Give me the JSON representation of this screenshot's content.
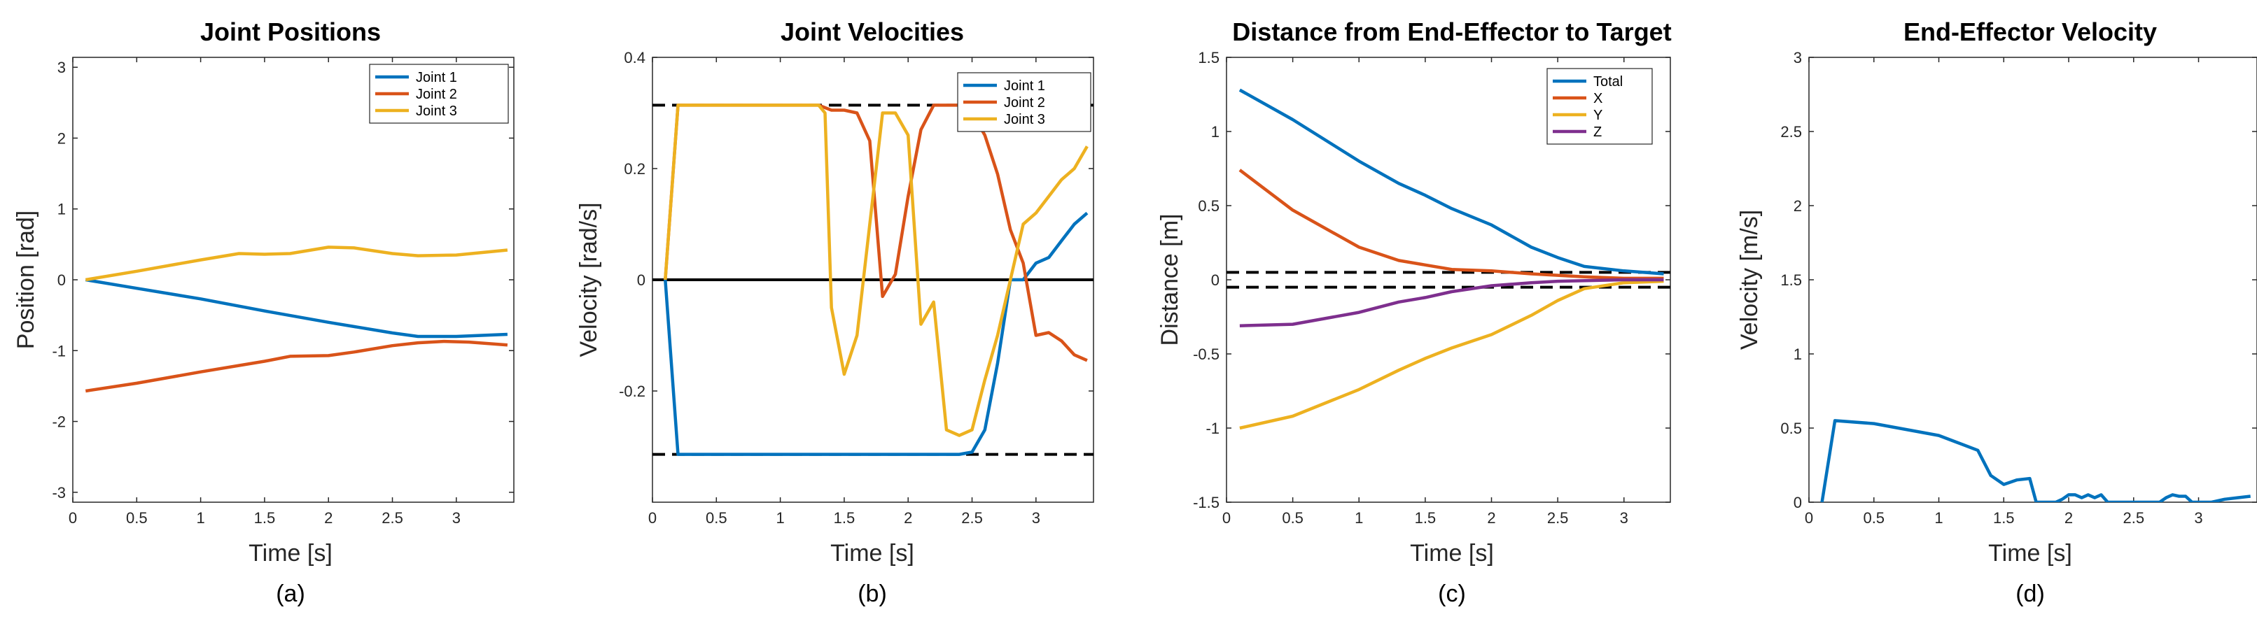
{
  "chart_data": [
    {
      "type": "line",
      "title": "Joint Positions",
      "xlabel": "Time [s]",
      "ylabel": "Position [rad]",
      "caption": "(a)",
      "xlim": [
        0,
        3.45
      ],
      "ylim": [
        -3.14,
        3.14
      ],
      "xticks": [
        0,
        0.5,
        1,
        1.5,
        2,
        2.5,
        3
      ],
      "xtick_labels": [
        "0",
        "0.5",
        "1",
        "1.5",
        "2",
        "2.5",
        "3"
      ],
      "yticks": [
        -3,
        -2,
        -1,
        0,
        1,
        2,
        3
      ],
      "ytick_labels": [
        "-3",
        "-2",
        "-1",
        "0",
        "1",
        "2",
        "3"
      ],
      "legend": "top-right",
      "grid": false,
      "series": [
        {
          "name": "Joint 1",
          "color": "#0072BD",
          "x": [
            0.1,
            0.5,
            1.0,
            1.5,
            2.0,
            2.5,
            2.7,
            3.0,
            3.4
          ],
          "y": [
            0,
            -0.12,
            -0.27,
            -0.44,
            -0.6,
            -0.75,
            -0.8,
            -0.8,
            -0.77
          ]
        },
        {
          "name": "Joint 2",
          "color": "#D95319",
          "x": [
            0.1,
            0.5,
            1.0,
            1.5,
            1.7,
            2.0,
            2.2,
            2.5,
            2.7,
            2.9,
            3.1,
            3.4
          ],
          "y": [
            -1.57,
            -1.46,
            -1.3,
            -1.15,
            -1.08,
            -1.07,
            -1.02,
            -0.93,
            -0.89,
            -0.87,
            -0.88,
            -0.92
          ]
        },
        {
          "name": "Joint 3",
          "color": "#EDB120",
          "x": [
            0.1,
            0.5,
            1.0,
            1.3,
            1.5,
            1.7,
            2.0,
            2.2,
            2.5,
            2.7,
            3.0,
            3.4
          ],
          "y": [
            0,
            0.12,
            0.28,
            0.37,
            0.36,
            0.37,
            0.46,
            0.45,
            0.37,
            0.34,
            0.35,
            0.42
          ]
        }
      ]
    },
    {
      "type": "line",
      "title": "Joint Velocities",
      "xlabel": "Time [s]",
      "ylabel": "Velocity [rad/s]",
      "caption": "(b)",
      "xlim": [
        0,
        3.45
      ],
      "ylim": [
        -0.4,
        0.4
      ],
      "xticks": [
        0,
        0.5,
        1,
        1.5,
        2,
        2.5,
        3
      ],
      "xtick_labels": [
        "0",
        "0.5",
        "1",
        "1.5",
        "2",
        "2.5",
        "3"
      ],
      "yticks": [
        -0.2,
        0,
        0.2,
        0.4
      ],
      "ytick_labels": [
        "-0.2",
        "0",
        "0.2",
        "0.4"
      ],
      "legend": "top-right",
      "grid": false,
      "reference_lines": [
        {
          "y": 0.314,
          "style": "dashed",
          "color": "#000000"
        },
        {
          "y": -0.314,
          "style": "dashed",
          "color": "#000000"
        },
        {
          "y": 0,
          "style": "solid",
          "color": "#000000"
        }
      ],
      "series": [
        {
          "name": "Joint 1",
          "color": "#0072BD",
          "x": [
            0.1,
            0.2,
            0.5,
            1.0,
            1.5,
            2.0,
            2.4,
            2.5,
            2.6,
            2.7,
            2.8,
            2.9,
            3.0,
            3.1,
            3.2,
            3.3,
            3.4
          ],
          "y": [
            0,
            -0.314,
            -0.314,
            -0.314,
            -0.314,
            -0.314,
            -0.314,
            -0.31,
            -0.27,
            -0.15,
            0.0,
            0.0,
            0.03,
            0.04,
            0.07,
            0.1,
            0.12
          ]
        },
        {
          "name": "Joint 2",
          "color": "#D95319",
          "x": [
            0.1,
            0.2,
            0.5,
            1.0,
            1.3,
            1.4,
            1.5,
            1.6,
            1.7,
            1.8,
            1.9,
            2.0,
            2.1,
            2.2,
            2.3,
            2.4,
            2.5,
            2.6,
            2.7,
            2.8,
            2.9,
            3.0,
            3.1,
            3.2,
            3.3,
            3.4
          ],
          "y": [
            0,
            0.314,
            0.314,
            0.314,
            0.314,
            0.305,
            0.305,
            0.3,
            0.25,
            -0.03,
            0.01,
            0.15,
            0.27,
            0.314,
            0.314,
            0.314,
            0.3,
            0.26,
            0.19,
            0.09,
            0.03,
            -0.1,
            -0.095,
            -0.11,
            -0.135,
            -0.145
          ]
        },
        {
          "name": "Joint 3",
          "color": "#EDB120",
          "x": [
            0.1,
            0.2,
            0.5,
            1.0,
            1.3,
            1.35,
            1.4,
            1.5,
            1.6,
            1.65,
            1.8,
            1.9,
            2.0,
            2.1,
            2.2,
            2.3,
            2.4,
            2.5,
            2.6,
            2.7,
            2.8,
            2.9,
            3.0,
            3.1,
            3.2,
            3.3,
            3.4
          ],
          "y": [
            0,
            0.314,
            0.314,
            0.314,
            0.314,
            0.3,
            -0.05,
            -0.17,
            -0.1,
            0.0,
            0.3,
            0.3,
            0.26,
            -0.08,
            -0.04,
            -0.27,
            -0.28,
            -0.27,
            -0.18,
            -0.1,
            0.0,
            0.1,
            0.12,
            0.15,
            0.18,
            0.2,
            0.24
          ]
        }
      ]
    },
    {
      "type": "line",
      "title": "Distance from End-Effector to Target",
      "xlabel": "Time [s]",
      "ylabel": "Distance [m]",
      "caption": "(c)",
      "xlim": [
        0,
        3.35
      ],
      "ylim": [
        -1.5,
        1.5
      ],
      "xticks": [
        0,
        0.5,
        1,
        1.5,
        2,
        2.5,
        3
      ],
      "xtick_labels": [
        "0",
        "0.5",
        "1",
        "1.5",
        "2",
        "2.5",
        "3"
      ],
      "yticks": [
        -1.5,
        -1,
        -0.5,
        0,
        0.5,
        1,
        1.5
      ],
      "ytick_labels": [
        "-1.5",
        "-1",
        "-0.5",
        "0",
        "0.5",
        "1",
        "1.5"
      ],
      "legend": "top-right",
      "grid": false,
      "reference_lines": [
        {
          "y": 0.05,
          "style": "dashed",
          "color": "#000000"
        },
        {
          "y": -0.05,
          "style": "dashed",
          "color": "#000000"
        }
      ],
      "series": [
        {
          "name": "Total",
          "color": "#0072BD",
          "x": [
            0.1,
            0.5,
            1.0,
            1.3,
            1.5,
            1.7,
            2.0,
            2.3,
            2.5,
            2.7,
            3.0,
            3.3
          ],
          "y": [
            1.28,
            1.08,
            0.8,
            0.65,
            0.57,
            0.48,
            0.37,
            0.22,
            0.15,
            0.09,
            0.06,
            0.04
          ]
        },
        {
          "name": "X",
          "color": "#D95319",
          "x": [
            0.1,
            0.5,
            1.0,
            1.3,
            1.5,
            1.7,
            2.0,
            2.3,
            2.7,
            3.0,
            3.3
          ],
          "y": [
            0.74,
            0.47,
            0.22,
            0.13,
            0.1,
            0.07,
            0.06,
            0.04,
            0.02,
            0.01,
            0.01
          ]
        },
        {
          "name": "Y",
          "color": "#EDB120",
          "x": [
            0.1,
            0.5,
            1.0,
            1.3,
            1.5,
            1.7,
            2.0,
            2.3,
            2.5,
            2.7,
            3.0,
            3.3
          ],
          "y": [
            -1.0,
            -0.92,
            -0.74,
            -0.61,
            -0.53,
            -0.46,
            -0.37,
            -0.24,
            -0.14,
            -0.06,
            -0.02,
            -0.01
          ]
        },
        {
          "name": "Z",
          "color": "#7E2F8E",
          "x": [
            0.1,
            0.5,
            1.0,
            1.3,
            1.5,
            1.7,
            2.0,
            2.3,
            2.5,
            3.0,
            3.3
          ],
          "y": [
            -0.31,
            -0.3,
            -0.22,
            -0.15,
            -0.12,
            -0.08,
            -0.04,
            -0.02,
            -0.01,
            0.0,
            0.0
          ]
        }
      ]
    },
    {
      "type": "line",
      "title": "End-Effector Velocity",
      "xlabel": "Time [s]",
      "ylabel": "Velocity [m/s]",
      "caption": "(d)",
      "xlim": [
        0,
        3.45
      ],
      "ylim": [
        0,
        3
      ],
      "xticks": [
        0,
        0.5,
        1,
        1.5,
        2,
        2.5,
        3
      ],
      "xtick_labels": [
        "0",
        "0.5",
        "1",
        "1.5",
        "2",
        "2.5",
        "3"
      ],
      "yticks": [
        0,
        0.5,
        1,
        1.5,
        2,
        2.5,
        3
      ],
      "ytick_labels": [
        "0",
        "0.5",
        "1",
        "1.5",
        "2",
        "2.5",
        "3"
      ],
      "grid": false,
      "series": [
        {
          "name": "",
          "color": "#0072BD",
          "x": [
            0.1,
            0.2,
            0.5,
            1.0,
            1.3,
            1.4,
            1.5,
            1.6,
            1.7,
            1.75,
            1.8,
            1.9,
            1.95,
            2.0,
            2.05,
            2.1,
            2.15,
            2.2,
            2.25,
            2.3,
            2.7,
            2.75,
            2.8,
            2.85,
            2.9,
            2.95,
            3.0,
            3.1,
            3.2,
            3.3,
            3.4
          ],
          "y": [
            0.0,
            0.55,
            0.53,
            0.45,
            0.35,
            0.18,
            0.12,
            0.15,
            0.16,
            0.0,
            0.0,
            0.0,
            0.02,
            0.05,
            0.05,
            0.03,
            0.05,
            0.03,
            0.05,
            0.0,
            0.0,
            0.03,
            0.05,
            0.04,
            0.04,
            0.0,
            0.0,
            0.0,
            0.02,
            0.03,
            0.04
          ]
        }
      ]
    }
  ]
}
